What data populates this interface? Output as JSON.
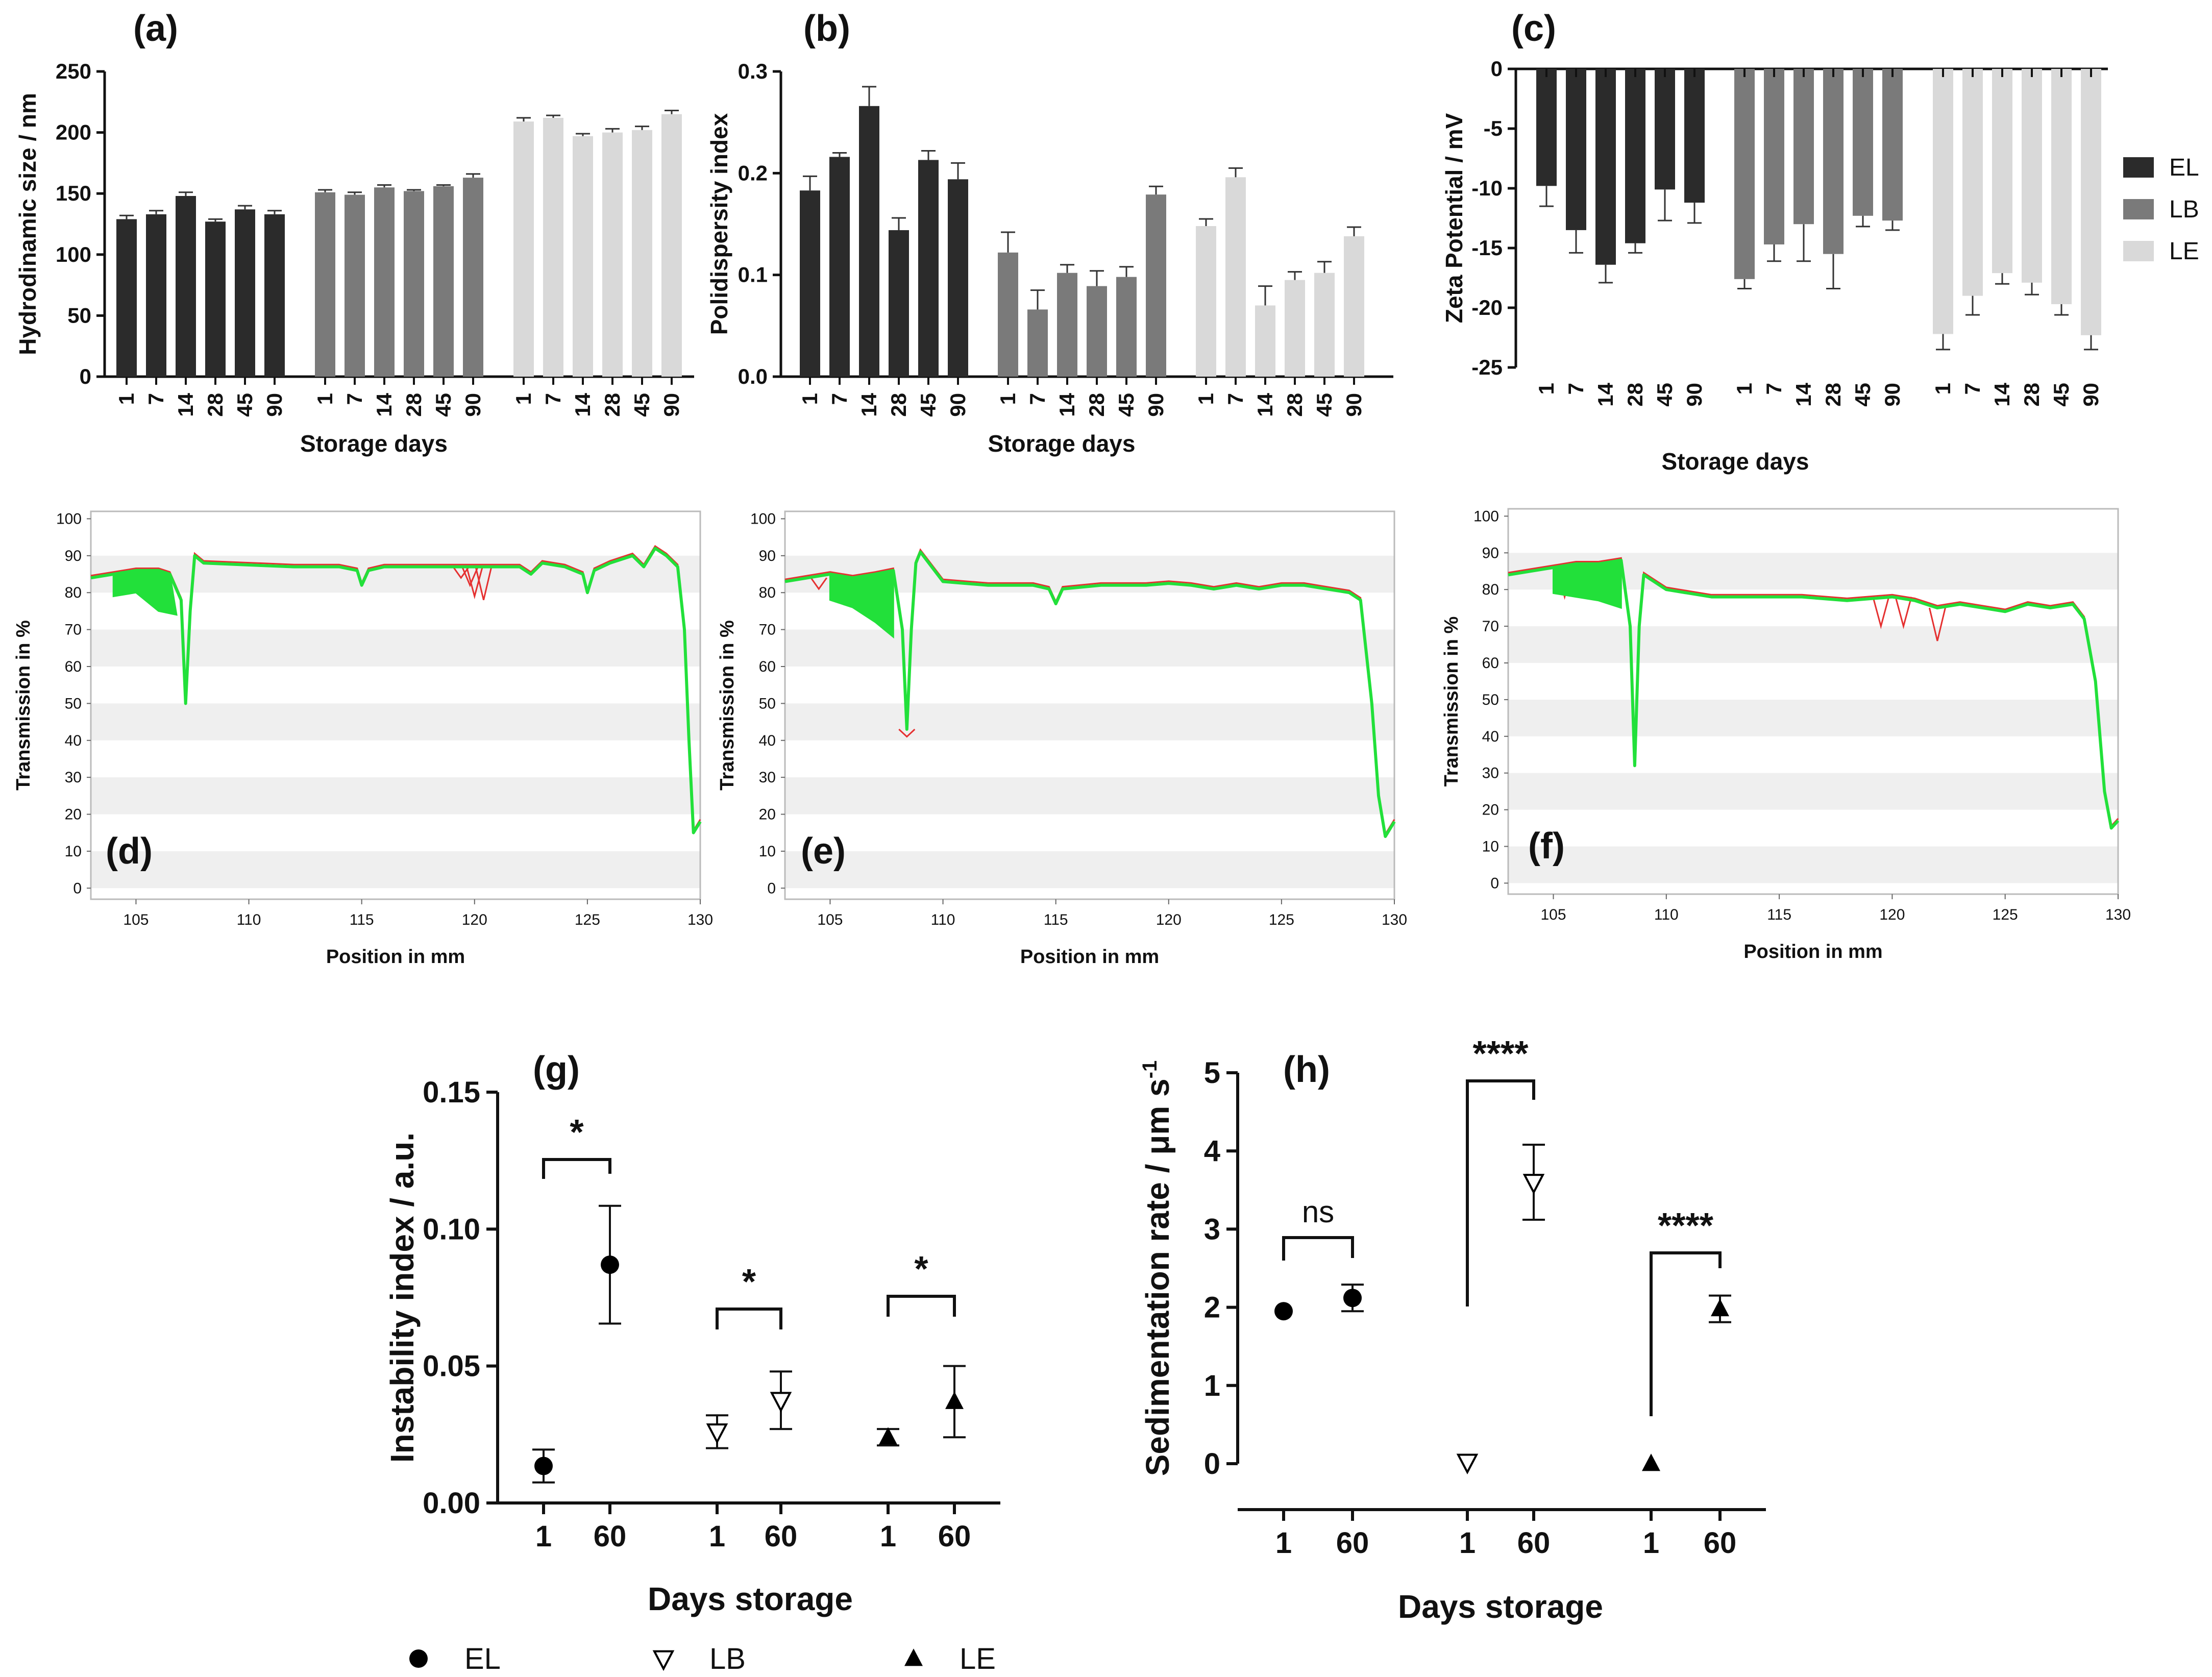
{
  "colors": {
    "EL": "#2b2b2b",
    "LB": "#7a7a7a",
    "LE": "#d9d9d9",
    "trace_green": "#22e03a",
    "trace_red": "#e53030",
    "band": "#efefef"
  },
  "chart_data": [
    {
      "id": "a",
      "type": "bar",
      "panel_label": "(a)",
      "ylabel": "Hydrodinamic size / nm",
      "xlabel": "Storage days",
      "ylim": [
        0,
        250
      ],
      "yticks": [
        "0",
        "50",
        "100",
        "150",
        "200",
        "250"
      ],
      "categories": [
        "1",
        "7",
        "14",
        "28",
        "45",
        "90"
      ],
      "series": [
        {
          "name": "EL",
          "values": [
            129,
            133,
            148,
            127,
            137,
            133
          ],
          "errors": [
            3,
            3,
            3,
            2,
            3,
            3
          ]
        },
        {
          "name": "LB",
          "values": [
            151,
            149,
            155,
            152,
            156,
            163
          ],
          "errors": [
            2,
            2,
            2,
            1,
            1,
            3
          ]
        },
        {
          "name": "LE",
          "values": [
            209,
            212,
            197,
            200,
            202,
            215
          ],
          "errors": [
            3,
            2,
            2,
            3,
            3,
            3
          ]
        }
      ]
    },
    {
      "id": "b",
      "type": "bar",
      "panel_label": "(b)",
      "ylabel": "Polidispersity index",
      "xlabel": "Storage days",
      "ylim": [
        0,
        0.3
      ],
      "yticks": [
        "0.0",
        "0.1",
        "0.2",
        "0.3"
      ],
      "categories": [
        "1",
        "7",
        "14",
        "28",
        "45",
        "90"
      ],
      "series": [
        {
          "name": "EL",
          "values": [
            0.183,
            0.216,
            0.266,
            0.144,
            0.213,
            0.194
          ],
          "errors": [
            0.014,
            0.004,
            0.019,
            0.012,
            0.009,
            0.016
          ]
        },
        {
          "name": "LB",
          "values": [
            0.122,
            0.066,
            0.102,
            0.089,
            0.098,
            0.179
          ],
          "errors": [
            0.02,
            0.019,
            0.008,
            0.015,
            0.01,
            0.008
          ]
        },
        {
          "name": "LE",
          "values": [
            0.148,
            0.196,
            0.07,
            0.095,
            0.102,
            0.138
          ],
          "errors": [
            0.007,
            0.009,
            0.019,
            0.008,
            0.011,
            0.009
          ]
        }
      ]
    },
    {
      "id": "c",
      "type": "bar",
      "panel_label": "(c)",
      "ylabel": "Zeta Potential / mV",
      "xlabel": "Storage days",
      "ylim": [
        -25,
        0
      ],
      "yticks": [
        "0",
        "-5",
        "-10",
        "-15",
        "-20",
        "-25"
      ],
      "categories": [
        "1",
        "7",
        "14",
        "28",
        "45",
        "90"
      ],
      "legend": [
        "EL",
        "LB",
        "LE"
      ],
      "series": [
        {
          "name": "EL",
          "values": [
            -9.8,
            -13.5,
            -16.4,
            -14.6,
            -10.1,
            -11.2
          ],
          "errors": [
            1.7,
            1.9,
            1.5,
            0.8,
            2.6,
            1.7
          ]
        },
        {
          "name": "LB",
          "values": [
            -17.6,
            -14.7,
            -13,
            -15.5,
            -12.3,
            -12.7
          ],
          "errors": [
            0.8,
            1.4,
            3.1,
            2.9,
            0.9,
            0.8
          ]
        },
        {
          "name": "LE",
          "values": [
            -22.2,
            -19,
            -17.1,
            -17.9,
            -19.7,
            -22.3
          ],
          "errors": [
            1.3,
            1.6,
            0.9,
            1,
            0.9,
            1.2
          ]
        }
      ]
    },
    {
      "id": "d",
      "type": "line",
      "panel_label": "(d)",
      "ylabel": "Transmission in %",
      "xlabel": "Position in mm",
      "xlim": [
        103,
        130
      ],
      "ylim": [
        -3,
        102
      ],
      "yticks": [
        "0",
        "10",
        "20",
        "30",
        "40",
        "50",
        "60",
        "70",
        "80",
        "90",
        "100"
      ],
      "xticks": [
        "105",
        "110",
        "115",
        "120",
        "125",
        "130"
      ],
      "profile": [
        [
          103,
          84
        ],
        [
          104,
          85
        ],
        [
          105,
          86
        ],
        [
          106,
          86
        ],
        [
          106.5,
          85
        ],
        [
          107,
          78
        ],
        [
          107.2,
          50
        ],
        [
          107.4,
          75
        ],
        [
          107.6,
          90
        ],
        [
          108,
          88
        ],
        [
          110,
          87.5
        ],
        [
          112,
          87
        ],
        [
          114,
          87
        ],
        [
          114.8,
          86
        ],
        [
          115,
          82
        ],
        [
          115.3,
          86
        ],
        [
          116,
          87
        ],
        [
          118,
          87
        ],
        [
          120,
          87
        ],
        [
          122,
          87
        ],
        [
          122.5,
          85
        ],
        [
          123,
          88
        ],
        [
          124,
          87
        ],
        [
          124.8,
          85
        ],
        [
          125,
          80
        ],
        [
          125.3,
          86
        ],
        [
          126,
          88
        ],
        [
          127,
          90
        ],
        [
          127.5,
          87
        ],
        [
          128,
          92
        ],
        [
          128.5,
          90
        ],
        [
          129,
          87
        ],
        [
          129.3,
          70
        ],
        [
          129.5,
          40
        ],
        [
          129.7,
          15
        ],
        [
          130,
          18
        ]
      ],
      "red_dips": [
        [
          120,
          79
        ],
        [
          120.4,
          78
        ],
        [
          119.8,
          82
        ],
        [
          119.4,
          84
        ]
      ],
      "band_low": [
        [
          104,
          79
        ],
        [
          105,
          80
        ],
        [
          106,
          75
        ],
        [
          106.8,
          74
        ]
      ]
    },
    {
      "id": "e",
      "type": "line",
      "panel_label": "(e)",
      "ylabel": "Transmission in %",
      "xlabel": "Position in mm",
      "xlim": [
        103,
        130
      ],
      "ylim": [
        -3,
        102
      ],
      "yticks": [
        "0",
        "10",
        "20",
        "30",
        "40",
        "50",
        "60",
        "70",
        "80",
        "90",
        "100"
      ],
      "xticks": [
        "105",
        "110",
        "115",
        "120",
        "125",
        "130"
      ],
      "profile": [
        [
          103,
          83
        ],
        [
          104,
          84
        ],
        [
          105,
          85
        ],
        [
          106,
          84
        ],
        [
          107,
          85
        ],
        [
          107.8,
          86
        ],
        [
          108.2,
          70
        ],
        [
          108.4,
          43
        ],
        [
          108.6,
          70
        ],
        [
          108.8,
          88
        ],
        [
          109,
          91
        ],
        [
          110,
          83
        ],
        [
          112,
          82
        ],
        [
          114,
          82
        ],
        [
          114.7,
          81
        ],
        [
          115,
          77
        ],
        [
          115.3,
          81
        ],
        [
          117,
          82
        ],
        [
          119,
          82
        ],
        [
          120,
          82.5
        ],
        [
          121,
          82
        ],
        [
          122,
          81
        ],
        [
          123,
          82
        ],
        [
          124,
          81
        ],
        [
          125,
          82
        ],
        [
          126,
          82
        ],
        [
          127,
          81
        ],
        [
          128,
          80
        ],
        [
          128.5,
          78
        ],
        [
          129,
          50
        ],
        [
          129.3,
          25
        ],
        [
          129.6,
          14
        ],
        [
          130,
          18
        ]
      ],
      "red_dips": [
        [
          104.5,
          81
        ],
        [
          106,
          80
        ],
        [
          107.3,
          79
        ],
        [
          108.4,
          41
        ]
      ],
      "band_low": [
        [
          105,
          78
        ],
        [
          106,
          76
        ],
        [
          107,
          72
        ],
        [
          107.8,
          68
        ]
      ]
    },
    {
      "id": "f",
      "type": "line",
      "panel_label": "(f)",
      "ylabel": "Transmission in %",
      "xlabel": "Position in mm",
      "xlim": [
        103,
        130
      ],
      "ylim": [
        -3,
        102
      ],
      "yticks": [
        "0",
        "10",
        "20",
        "30",
        "40",
        "50",
        "60",
        "70",
        "80",
        "90",
        "100"
      ],
      "xticks": [
        "105",
        "110",
        "115",
        "120",
        "125",
        "130"
      ],
      "profile": [
        [
          103,
          84
        ],
        [
          104,
          85
        ],
        [
          105,
          86
        ],
        [
          106,
          87
        ],
        [
          107,
          87
        ],
        [
          108,
          88
        ],
        [
          108.4,
          70
        ],
        [
          108.6,
          32
        ],
        [
          108.8,
          70
        ],
        [
          109,
          84
        ],
        [
          110,
          80
        ],
        [
          112,
          78
        ],
        [
          114,
          78
        ],
        [
          116,
          78
        ],
        [
          118,
          77
        ],
        [
          120,
          78
        ],
        [
          121,
          77
        ],
        [
          122,
          75
        ],
        [
          123,
          76
        ],
        [
          124,
          75
        ],
        [
          125,
          74
        ],
        [
          126,
          76
        ],
        [
          127,
          75
        ],
        [
          128,
          76
        ],
        [
          128.5,
          72
        ],
        [
          129,
          55
        ],
        [
          129.4,
          25
        ],
        [
          129.7,
          15
        ],
        [
          130,
          17
        ]
      ],
      "red_dips": [
        [
          105.5,
          78
        ],
        [
          119.5,
          70
        ],
        [
          120.5,
          70
        ],
        [
          122,
          66
        ]
      ],
      "band_low": [
        [
          105,
          79
        ],
        [
          106,
          78
        ],
        [
          107,
          77
        ],
        [
          108,
          75
        ]
      ]
    },
    {
      "id": "g",
      "type": "scatter",
      "panel_label": "(g)",
      "ylabel": "Instability index / a.u.",
      "xlabel": "Days storage",
      "ylim": [
        0,
        0.15
      ],
      "yticks": [
        "0.00",
        "0.05",
        "0.10",
        "0.15"
      ],
      "groups": [
        {
          "name": "EL",
          "marker": "circle",
          "points": [
            {
              "day": "1",
              "y": 0.0135,
              "err": 0.006
            },
            {
              "day": "60",
              "y": 0.087,
              "err": 0.0215
            }
          ],
          "significance": "*"
        },
        {
          "name": "LB",
          "marker": "triangle-down-open",
          "points": [
            {
              "day": "1",
              "y": 0.026,
              "err": 0.006
            },
            {
              "day": "60",
              "y": 0.0375,
              "err": 0.0105
            }
          ],
          "significance": "*"
        },
        {
          "name": "LE",
          "marker": "triangle-up",
          "points": [
            {
              "day": "1",
              "y": 0.024,
              "err": 0.003
            },
            {
              "day": "60",
              "y": 0.037,
              "err": 0.013
            }
          ],
          "significance": "*"
        }
      ]
    },
    {
      "id": "h",
      "type": "scatter",
      "panel_label": "(h)",
      "ylabel": "Sedimentation rate / μm s",
      "ylabel_sup": "-1",
      "xlabel": "Days storage",
      "ylim": [
        0,
        5
      ],
      "yticks": [
        "0",
        "1",
        "2",
        "3",
        "4",
        "5"
      ],
      "groups": [
        {
          "name": "EL",
          "marker": "circle",
          "points": [
            {
              "day": "1",
              "y": 1.95,
              "err": 0
            },
            {
              "day": "60",
              "y": 2.12,
              "err": 0.17
            }
          ],
          "significance": "ns"
        },
        {
          "name": "LB",
          "marker": "triangle-down-open",
          "points": [
            {
              "day": "1",
              "y": 0.02,
              "err": 0
            },
            {
              "day": "60",
              "y": 3.6,
              "err": 0.48
            }
          ],
          "significance": "****"
        },
        {
          "name": "LE",
          "marker": "triangle-up",
          "points": [
            {
              "day": "1",
              "y": 0.0,
              "err": 0
            },
            {
              "day": "60",
              "y": 1.98,
              "err": 0.17
            }
          ],
          "significance": "****"
        }
      ]
    }
  ],
  "bottom_legend": [
    {
      "name": "EL",
      "marker": "circle"
    },
    {
      "name": "LB",
      "marker": "triangle-down-open"
    },
    {
      "name": "LE",
      "marker": "triangle-up"
    }
  ]
}
